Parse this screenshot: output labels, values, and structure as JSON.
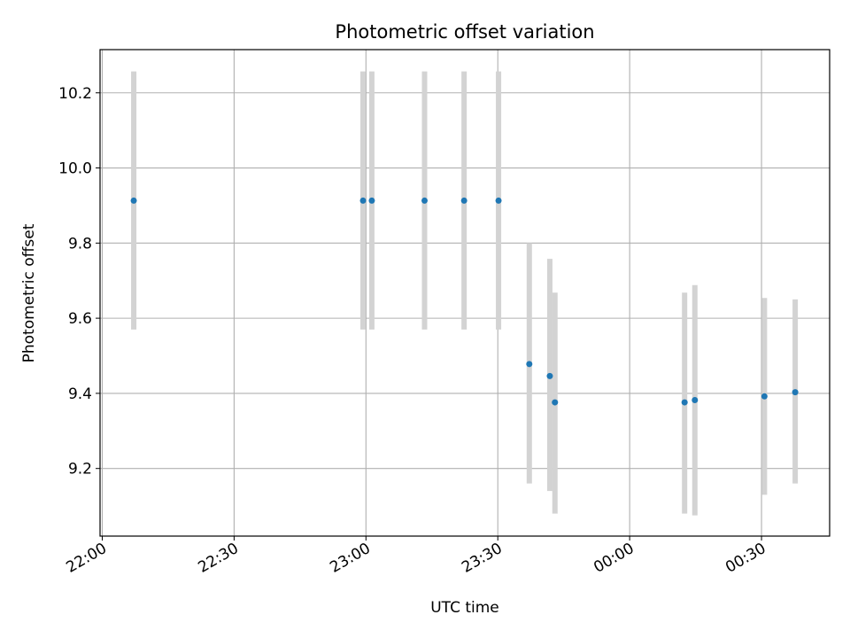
{
  "chart_data": {
    "type": "scatter",
    "title": "Photometric offset variation",
    "xlabel": "UTC time",
    "ylabel": "Photometric offset",
    "x_ticks": [
      "22:00",
      "22:30",
      "23:00",
      "23:30",
      "00:00",
      "00:30"
    ],
    "y_ticks": [
      "9.2",
      "9.4",
      "9.6",
      "9.8",
      "10.0",
      "10.2"
    ],
    "xlim": [
      "21:59:30",
      "00:45:30"
    ],
    "ylim": [
      9.02,
      10.315
    ],
    "grid": true,
    "series": [
      {
        "x": [
          "22:07:10",
          "22:59:20",
          "23:01:20",
          "23:13:20",
          "23:22:20",
          "23:30:10",
          "23:37:10",
          "23:41:50",
          "23:43:00",
          "00:12:30",
          "00:14:50",
          "00:30:40",
          "00:37:40"
        ],
        "y": [
          9.913,
          9.913,
          9.913,
          9.913,
          9.913,
          9.913,
          9.478,
          9.446,
          9.376,
          9.376,
          9.382,
          9.392,
          9.403
        ],
        "err_low": [
          9.57,
          9.57,
          9.57,
          9.57,
          9.57,
          9.57,
          9.16,
          9.14,
          9.08,
          9.08,
          9.075,
          9.13,
          9.16
        ],
        "err_high": [
          10.257,
          10.257,
          10.257,
          10.257,
          10.257,
          10.257,
          9.8,
          9.758,
          9.668,
          9.668,
          9.688,
          9.654,
          9.65
        ]
      }
    ],
    "colors": {
      "point": "#1f77b4",
      "errorbar": "#d3d3d3",
      "grid": "#b0b0b0"
    }
  }
}
